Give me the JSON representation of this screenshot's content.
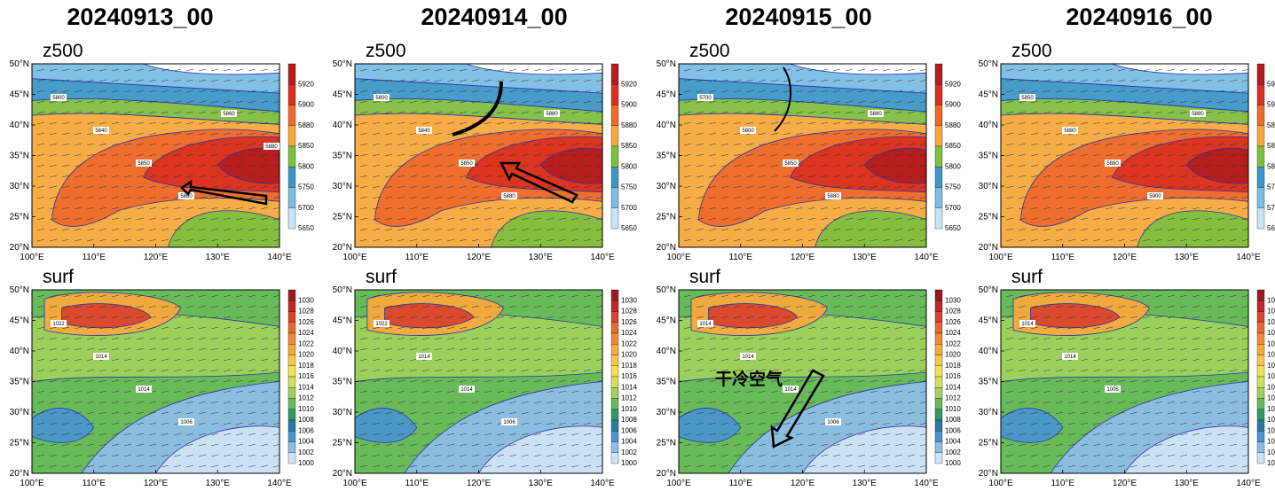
{
  "dates": [
    "20240913_00",
    "20240914_00",
    "20240915_00",
    "20240916_00"
  ],
  "rows": [
    {
      "label": "z500",
      "colorbar": {
        "levels": [
          "5920",
          "5900",
          "5880",
          "5850",
          "5800",
          "5750",
          "5700",
          "5650"
        ],
        "colors": [
          "#b31d1d",
          "#d9301f",
          "#ee6a2c",
          "#f6a93b",
          "#7fbf3f",
          "#3d97c6",
          "#7cbde4",
          "#c7e5f6"
        ]
      }
    },
    {
      "label": "surf",
      "colorbar": {
        "levels": [
          "1030",
          "1028",
          "1026",
          "1024",
          "1022",
          "1020",
          "1018",
          "1016",
          "1014",
          "1012",
          "1010",
          "1008",
          "1006",
          "1004",
          "1002",
          "1000"
        ],
        "colors": [
          "#9b1b1b",
          "#c0282a",
          "#d8452c",
          "#e96a2f",
          "#f08a35",
          "#f5a93c",
          "#f7c648",
          "#f4df55",
          "#cfe05b",
          "#9fd15e",
          "#68bb5a",
          "#2f9a61",
          "#2a78a7",
          "#4a95cf",
          "#8dbde7",
          "#cfe4f6"
        ]
      }
    }
  ],
  "axes": {
    "lat_ticks": [
      "50°N",
      "45°N",
      "40°N",
      "35°N",
      "30°N",
      "25°N",
      "20°N"
    ],
    "lon_ticks": [
      "100°E",
      "110°E",
      "120°E",
      "130°E",
      "140°E"
    ]
  },
  "annotation": {
    "text": "干冷空气"
  },
  "contour_labels": {
    "z500": [
      [
        "5800",
        "5840",
        "5850",
        "5880",
        "5860",
        "5880"
      ],
      [
        "5800",
        "5840",
        "5850",
        "5880",
        "5880"
      ],
      [
        "5700",
        "5800",
        "5850",
        "5880",
        "5880"
      ],
      [
        "5850",
        "5880",
        "5880",
        "5900",
        "5880"
      ]
    ],
    "surf": [
      [
        "1022",
        "1014",
        "1014",
        "1006"
      ],
      [
        "1022",
        "1014",
        "1014",
        "1006"
      ],
      [
        "1014",
        "1014",
        "1014",
        "1006"
      ],
      [
        "1014",
        "1014",
        "1006"
      ]
    ]
  },
  "colors": {
    "contour": "#2a33a8",
    "arrow": "#000000",
    "wind": "#333333"
  }
}
